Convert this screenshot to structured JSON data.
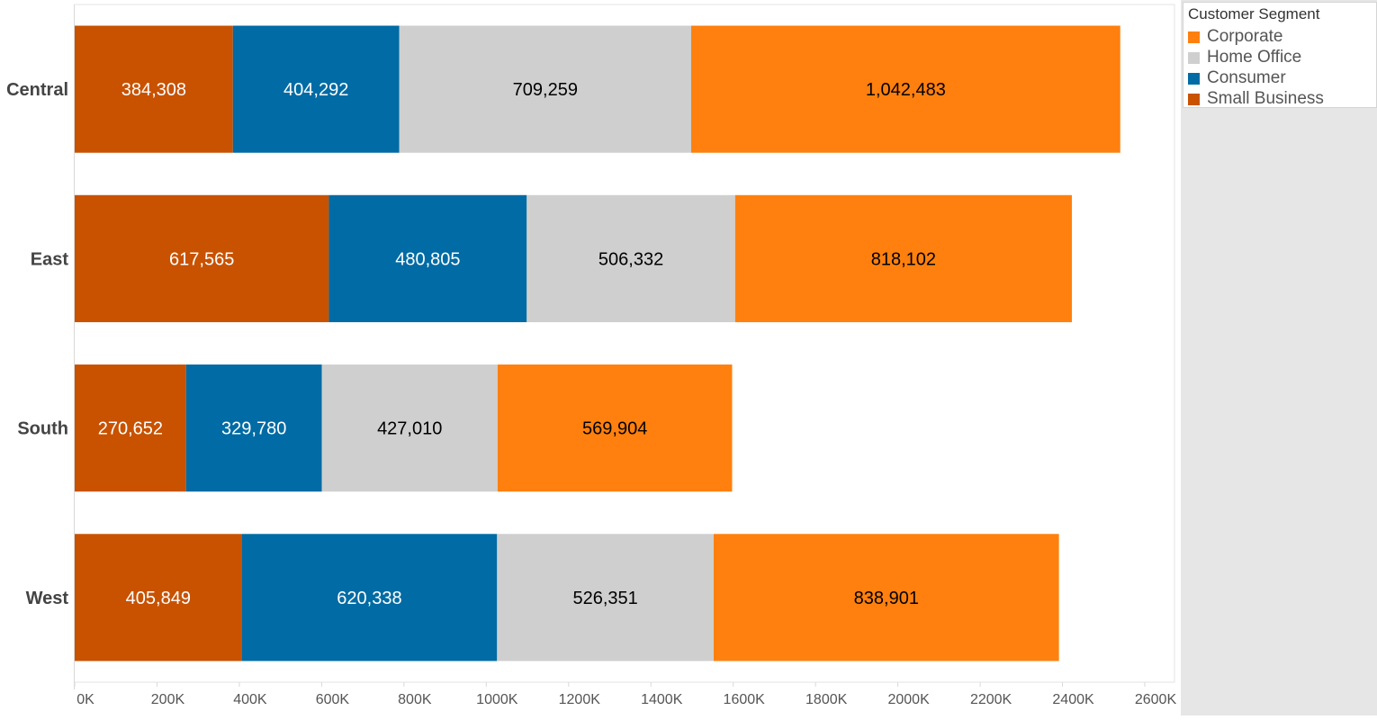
{
  "chart_data": {
    "type": "bar",
    "orientation": "horizontal",
    "stacked": true,
    "categories": [
      "Central",
      "East",
      "South",
      "West"
    ],
    "series": [
      {
        "name": "Small Business",
        "color": "#c85200",
        "label_color": "#ffffff",
        "values": [
          384308,
          617565,
          270652,
          405849
        ],
        "labels": [
          "384,308",
          "617,565",
          "270,652",
          "405,849"
        ]
      },
      {
        "name": "Consumer",
        "color": "#006ba4",
        "label_color": "#ffffff",
        "values": [
          404292,
          480805,
          329780,
          620338
        ],
        "labels": [
          "404,292",
          "480,805",
          "329,780",
          "620,338"
        ]
      },
      {
        "name": "Home Office",
        "color": "#cfcfcf",
        "label_color": "#000000",
        "values": [
          709259,
          506332,
          427010,
          526351
        ],
        "labels": [
          "709,259",
          "506,332",
          "427,010",
          "526,351"
        ]
      },
      {
        "name": "Corporate",
        "color": "#ff800e",
        "label_color": "#000000",
        "values": [
          1042483,
          818102,
          569904,
          838901
        ],
        "labels": [
          "1,042,483",
          "818,102",
          "569,904",
          "838,901"
        ]
      }
    ],
    "xlim": [
      0,
      2600000
    ],
    "x_ticks": [
      0,
      200000,
      400000,
      600000,
      800000,
      1000000,
      1200000,
      1400000,
      1600000,
      1800000,
      2000000,
      2200000,
      2400000,
      2600000
    ],
    "x_tick_labels": [
      "0K",
      "200K",
      "400K",
      "600K",
      "800K",
      "1000K",
      "1200K",
      "1400K",
      "1600K",
      "1800K",
      "2000K",
      "2200K",
      "2400K",
      "2600K"
    ],
    "xlabel": "",
    "ylabel": "",
    "grid": false,
    "legend_position": "right"
  },
  "legend": {
    "title": "Customer Segment",
    "items": [
      {
        "label": "Corporate",
        "color": "#ff800e"
      },
      {
        "label": "Home Office",
        "color": "#cfcfcf"
      },
      {
        "label": "Consumer",
        "color": "#006ba4"
      },
      {
        "label": "Small Business",
        "color": "#c85200"
      }
    ]
  }
}
